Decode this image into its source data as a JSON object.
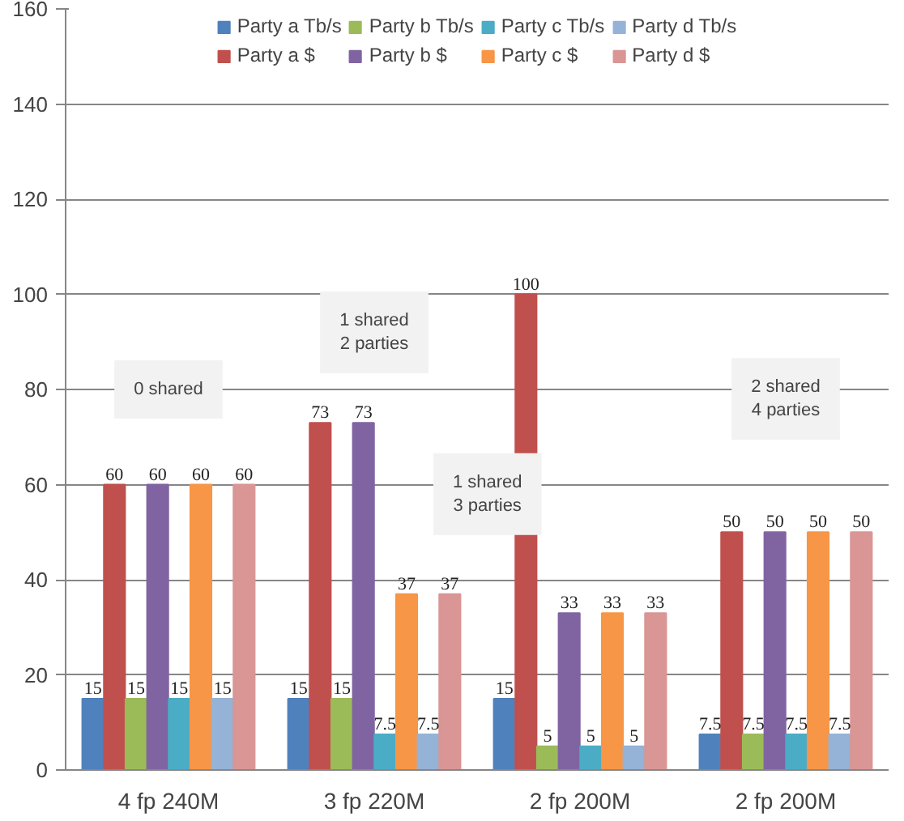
{
  "chart_data": {
    "type": "bar",
    "categories": [
      "4 fp 240M",
      "3 fp 220M",
      "2 fp 200M",
      "2 fp 200M"
    ],
    "series": [
      {
        "name": "Party a Tb/s",
        "color": "#4f81bd",
        "values": [
          15,
          15,
          15,
          7.5
        ]
      },
      {
        "name": "Party a $",
        "color": "#c0504d",
        "values": [
          60,
          73,
          100,
          50
        ]
      },
      {
        "name": "Party b Tb/s",
        "color": "#9bbb59",
        "values": [
          15,
          15,
          5,
          7.5
        ]
      },
      {
        "name": "Party b $",
        "color": "#8064a2",
        "values": [
          60,
          73,
          33,
          50
        ]
      },
      {
        "name": "Party c Tb/s",
        "color": "#4bacc6",
        "values": [
          15,
          7.5,
          5,
          7.5
        ]
      },
      {
        "name": "Party c $",
        "color": "#f79646",
        "values": [
          60,
          37,
          33,
          50
        ]
      },
      {
        "name": "Party d Tb/s",
        "color": "#95b3d7",
        "values": [
          15,
          7.5,
          5,
          7.5
        ]
      },
      {
        "name": "Party d $",
        "color": "#d99694",
        "values": [
          60,
          37,
          33,
          50
        ]
      }
    ],
    "ylim": [
      0,
      160
    ],
    "yticks": [
      0,
      20,
      40,
      60,
      80,
      100,
      120,
      140,
      160
    ],
    "grid": "y",
    "legend": "top",
    "data_labels": true,
    "annotations": [
      "0 shared",
      "1 shared\n2 parties",
      "1 shared\n3 parties",
      "2 shared\n4 parties"
    ]
  }
}
